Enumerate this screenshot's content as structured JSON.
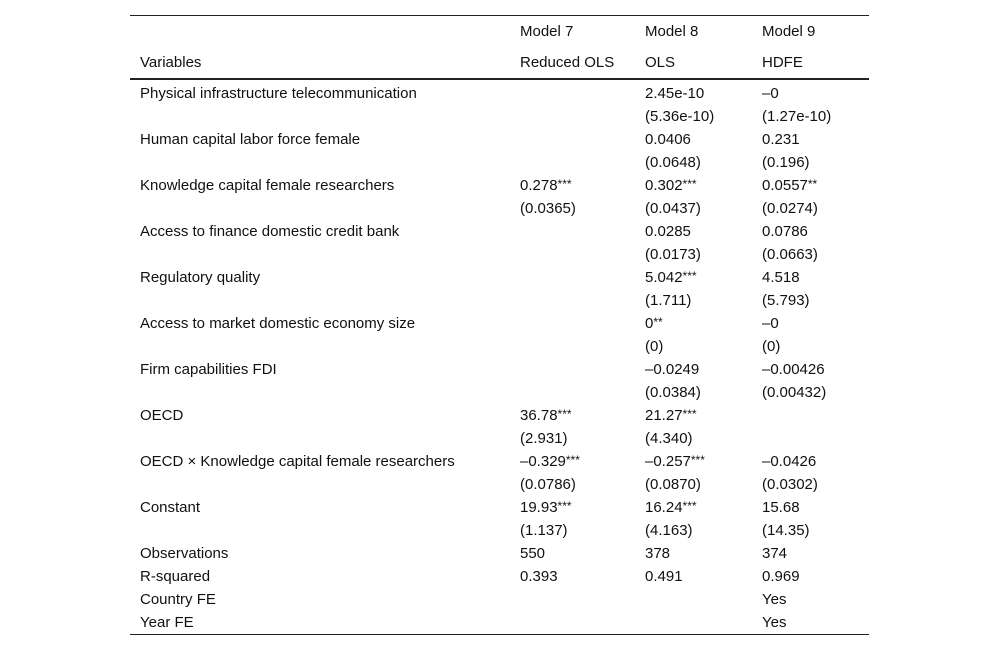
{
  "header": {
    "variables_label": "Variables",
    "models": [
      {
        "name": "Model 7",
        "method": "Reduced OLS"
      },
      {
        "name": "Model 8",
        "method": "OLS"
      },
      {
        "name": "Model 9",
        "method": "HDFE"
      }
    ]
  },
  "rows": [
    {
      "label": "Physical infrastructure telecommunication",
      "coef": [
        {
          "v": "",
          "s": ""
        },
        {
          "v": "2.45e-10",
          "s": ""
        },
        {
          "v": "–0",
          "s": ""
        }
      ],
      "se": [
        "",
        "(5.36e-10)",
        "(1.27e-10)"
      ]
    },
    {
      "label": "Human capital labor force female",
      "coef": [
        {
          "v": "",
          "s": ""
        },
        {
          "v": "0.0406",
          "s": ""
        },
        {
          "v": "0.231",
          "s": ""
        }
      ],
      "se": [
        "",
        "(0.0648)",
        "(0.196)"
      ]
    },
    {
      "label": "Knowledge capital female researchers",
      "coef": [
        {
          "v": "0.278",
          "s": "***"
        },
        {
          "v": "0.302",
          "s": "***"
        },
        {
          "v": "0.0557",
          "s": "**"
        }
      ],
      "se": [
        "(0.0365)",
        "(0.0437)",
        "(0.0274)"
      ]
    },
    {
      "label": "Access to finance domestic credit bank",
      "coef": [
        {
          "v": "",
          "s": ""
        },
        {
          "v": "0.0285",
          "s": ""
        },
        {
          "v": "0.0786",
          "s": ""
        }
      ],
      "se": [
        "",
        "(0.0173)",
        "(0.0663)"
      ]
    },
    {
      "label": "Regulatory quality",
      "coef": [
        {
          "v": "",
          "s": ""
        },
        {
          "v": "5.042",
          "s": "***"
        },
        {
          "v": "4.518",
          "s": ""
        }
      ],
      "se": [
        "",
        "(1.711)",
        "(5.793)"
      ]
    },
    {
      "label": "Access to market domestic economy size",
      "coef": [
        {
          "v": "",
          "s": ""
        },
        {
          "v": "0",
          "s": "**"
        },
        {
          "v": "–0",
          "s": ""
        }
      ],
      "se": [
        "",
        "(0)",
        "(0)"
      ]
    },
    {
      "label": "Firm capabilities FDI",
      "coef": [
        {
          "v": "",
          "s": ""
        },
        {
          "v": "–0.0249",
          "s": ""
        },
        {
          "v": "–0.00426",
          "s": ""
        }
      ],
      "se": [
        "",
        "(0.0384)",
        "(0.00432)"
      ]
    },
    {
      "label": "OECD",
      "coef": [
        {
          "v": "36.78",
          "s": "***"
        },
        {
          "v": "21.27",
          "s": "***"
        },
        {
          "v": "",
          "s": ""
        }
      ],
      "se": [
        "(2.931)",
        "(4.340)",
        ""
      ]
    },
    {
      "label": "OECD × Knowledge capital female researchers",
      "coef": [
        {
          "v": "–0.329",
          "s": "***"
        },
        {
          "v": "–0.257",
          "s": "***"
        },
        {
          "v": "–0.0426",
          "s": ""
        }
      ],
      "se": [
        "(0.0786)",
        "(0.0870)",
        "(0.0302)"
      ]
    },
    {
      "label": "Constant",
      "coef": [
        {
          "v": "19.93",
          "s": "***"
        },
        {
          "v": "16.24",
          "s": "***"
        },
        {
          "v": "15.68",
          "s": ""
        }
      ],
      "se": [
        "(1.137)",
        "(4.163)",
        "(14.35)"
      ]
    }
  ],
  "stats": [
    {
      "label": "Observations",
      "values": [
        "550",
        "378",
        "374"
      ]
    },
    {
      "label": "R-squared",
      "values": [
        "0.393",
        "0.491",
        "0.969"
      ]
    },
    {
      "label": "Country FE",
      "values": [
        "",
        "",
        "Yes"
      ]
    },
    {
      "label": "Year FE",
      "values": [
        "",
        "",
        "Yes"
      ]
    }
  ]
}
